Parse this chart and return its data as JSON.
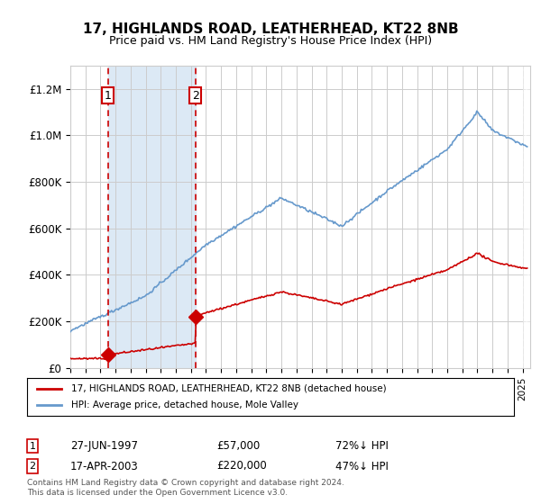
{
  "title": "17, HIGHLANDS ROAD, LEATHERHEAD, KT22 8NB",
  "subtitle": "Price paid vs. HM Land Registry's House Price Index (HPI)",
  "legend_line1": "17, HIGHLANDS ROAD, LEATHERHEAD, KT22 8NB (detached house)",
  "legend_line2": "HPI: Average price, detached house, Mole Valley",
  "transaction1": {
    "label": "1",
    "date": "27-JUN-1997",
    "price": 57000,
    "pct": "72%↓ HPI",
    "x_year": 1997.49
  },
  "transaction2": {
    "label": "2",
    "date": "17-APR-2003",
    "price": 220000,
    "pct": "47%↓ HPI",
    "x_year": 2003.29
  },
  "footer": "Contains HM Land Registry data © Crown copyright and database right 2024.\nThis data is licensed under the Open Government Licence v3.0.",
  "hpi_color": "#6699cc",
  "price_color": "#cc0000",
  "shade_color": "#dce9f5",
  "grid_color": "#cccccc",
  "background_color": "#ffffff",
  "ylim": [
    0,
    1300000
  ],
  "xlim_start": 1995.0,
  "xlim_end": 2025.5
}
